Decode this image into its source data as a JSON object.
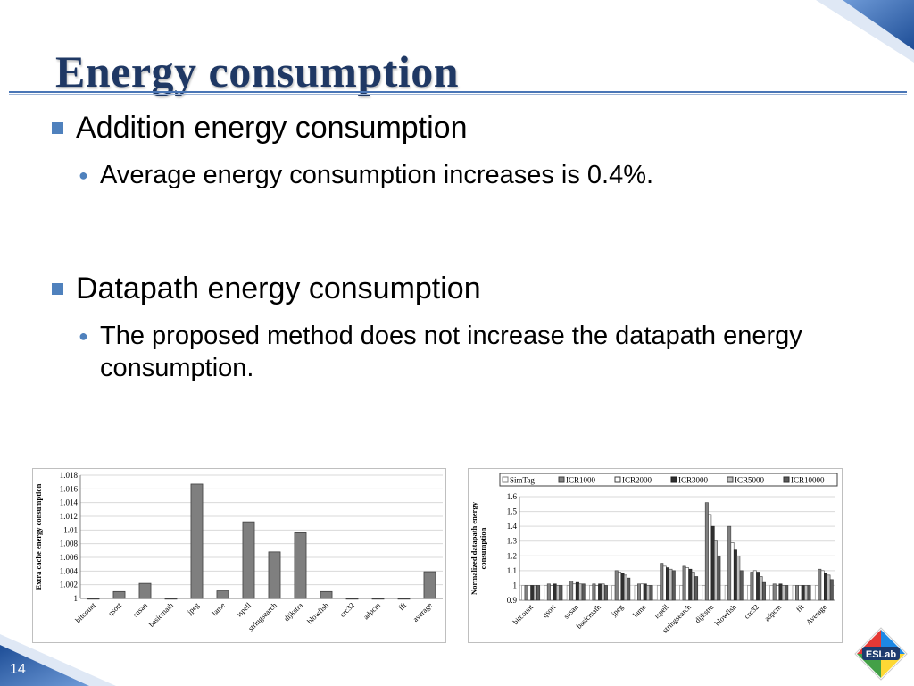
{
  "slide": {
    "title": "Energy consumption",
    "page_number": "14",
    "logo_text": "ESLab"
  },
  "bullets": [
    {
      "text": "Addition energy consumption",
      "sub": [
        "Average energy consumption increases is 0.4%."
      ]
    },
    {
      "text": "Datapath energy consumption",
      "sub": [
        "The proposed method does not increase the datapath energy consumption."
      ]
    }
  ],
  "colors": {
    "title": "#1f3864",
    "accent": "#4f81bd",
    "bar": "#7f7f7f"
  },
  "chart_data": [
    {
      "type": "bar",
      "categories": [
        "bitcount",
        "qsort",
        "susan",
        "basicmath",
        "jpeg",
        "lame",
        "ispell",
        "stringsearch",
        "dijkstra",
        "blowfish",
        "crc32",
        "adpcm",
        "fft",
        "average"
      ],
      "values": [
        1.0,
        1.001,
        1.0022,
        1.0,
        1.0167,
        1.0011,
        1.0112,
        1.0068,
        1.0096,
        1.001,
        1.0,
        1.0,
        1.0,
        1.0039
      ],
      "ylabel": "Extra cache energy consumption",
      "ylim": [
        1,
        1.018
      ],
      "yticks": [
        "1",
        "1.002",
        "1.004",
        "1.006",
        "1.008",
        "1.01",
        "1.012",
        "1.014",
        "1.016",
        "1.018"
      ],
      "grid": true,
      "legend": "none"
    },
    {
      "type": "bar",
      "categories": [
        "bitcount",
        "qsort",
        "susan",
        "basicmath",
        "jpeg",
        "lame",
        "ispell",
        "stringsearch",
        "dijkstra",
        "blowfish",
        "crc32",
        "adpcm",
        "fft",
        "Average"
      ],
      "series": [
        {
          "name": "SimTag",
          "values": [
            1.0,
            1.0,
            1.0,
            1.0,
            1.0,
            1.0,
            1.0,
            1.0,
            1.0,
            1.0,
            1.0,
            1.0,
            1.0,
            1.0
          ]
        },
        {
          "name": "ICR1000",
          "values": [
            1.0,
            1.01,
            1.03,
            1.01,
            1.1,
            1.01,
            1.15,
            1.13,
            1.56,
            1.4,
            1.09,
            1.01,
            1.0,
            1.11
          ]
        },
        {
          "name": "ICR2000",
          "values": [
            1.0,
            1.0,
            1.01,
            1.0,
            1.09,
            1.01,
            1.13,
            1.12,
            1.48,
            1.29,
            1.1,
            1.0,
            1.0,
            1.1
          ]
        },
        {
          "name": "ICR3000",
          "values": [
            1.0,
            1.01,
            1.02,
            1.01,
            1.08,
            1.01,
            1.12,
            1.11,
            1.4,
            1.24,
            1.09,
            1.01,
            1.0,
            1.08
          ]
        },
        {
          "name": "ICR5000",
          "values": [
            1.0,
            1.0,
            1.01,
            1.01,
            1.07,
            1.0,
            1.11,
            1.09,
            1.3,
            1.2,
            1.06,
            1.0,
            1.0,
            1.07
          ]
        },
        {
          "name": "ICR10000",
          "values": [
            1.0,
            1.0,
            1.01,
            1.0,
            1.05,
            1.0,
            1.1,
            1.06,
            1.2,
            1.1,
            1.02,
            1.0,
            1.0,
            1.04
          ]
        }
      ],
      "ylabel": "Normalized datapath energy consumption",
      "ylim": [
        0.9,
        1.6
      ],
      "yticks": [
        "0.9",
        "1",
        "1.1",
        "1.2",
        "1.3",
        "1.4",
        "1.5",
        "1.6"
      ],
      "grid": true,
      "legend": "top"
    }
  ]
}
